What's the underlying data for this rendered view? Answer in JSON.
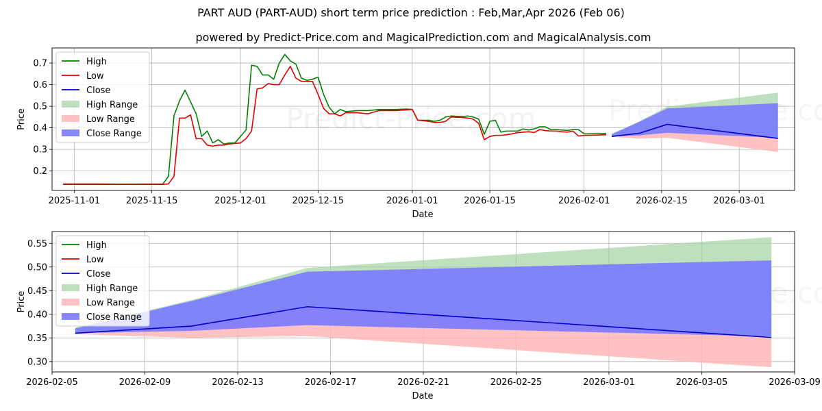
{
  "title": "PART AUD (PART-AUD) short term price prediction : Feb,Mar,Apr 2026 (Feb 06)",
  "subtitle": "powered by Predict-Price.com and MagicalPrediction.com and MagicalAnalysis.com",
  "watermark": "Predict-Price.com",
  "colors": {
    "high": "#008000",
    "low": "#e00000",
    "close": "#0000cc",
    "high_range": "#a3d3a3",
    "low_range": "#ffb3b3",
    "close_range": "#7a7aff"
  },
  "chart_data": [
    {
      "type": "line",
      "xlabel": "Date",
      "ylabel": "Price",
      "x_range": [
        "2025-10-28",
        "2026-03-11"
      ],
      "ylim": [
        0.11,
        0.77
      ],
      "yticks": [
        0.2,
        0.3,
        0.4,
        0.5,
        0.6,
        0.7
      ],
      "ytick_labels": [
        "0.2",
        "0.3",
        "0.4",
        "0.5",
        "0.6",
        "0.7"
      ],
      "xticks": [
        "2025-11-01",
        "2025-11-15",
        "2025-12-01",
        "2025-12-15",
        "2026-01-01",
        "2026-01-15",
        "2026-02-01",
        "2026-02-15",
        "2026-03-01"
      ],
      "xtick_labels": [
        "2025-11-01",
        "2025-11-15",
        "2025-12-01",
        "2025-12-15",
        "2026-01-01",
        "2026-01-15",
        "2026-02-01",
        "2026-02-15",
        "2026-03-01"
      ],
      "grid": true,
      "legend_position": "top-left",
      "legend": [
        "High",
        "Low",
        "Close",
        "High Range",
        "Low Range",
        "Close Range"
      ],
      "series": [
        {
          "name": "High",
          "points": [
            [
              "2025-10-30",
              0.14
            ],
            [
              "2025-11-05",
              0.14
            ],
            [
              "2025-11-10",
              0.139
            ],
            [
              "2025-11-17",
              0.14
            ],
            [
              "2025-11-18",
              0.175
            ],
            [
              "2025-11-19",
              0.455
            ],
            [
              "2025-11-20",
              0.525
            ],
            [
              "2025-11-21",
              0.575
            ],
            [
              "2025-11-22",
              0.52
            ],
            [
              "2025-11-23",
              0.465
            ],
            [
              "2025-11-24",
              0.36
            ],
            [
              "2025-11-25",
              0.385
            ],
            [
              "2025-11-26",
              0.33
            ],
            [
              "2025-11-27",
              0.345
            ],
            [
              "2025-11-28",
              0.325
            ],
            [
              "2025-11-29",
              0.33
            ],
            [
              "2025-11-30",
              0.33
            ],
            [
              "2025-12-01",
              0.36
            ],
            [
              "2025-12-02",
              0.39
            ],
            [
              "2025-12-03",
              0.69
            ],
            [
              "2025-12-04",
              0.685
            ],
            [
              "2025-12-05",
              0.645
            ],
            [
              "2025-12-06",
              0.645
            ],
            [
              "2025-12-07",
              0.625
            ],
            [
              "2025-12-08",
              0.7
            ],
            [
              "2025-12-09",
              0.74
            ],
            [
              "2025-12-10",
              0.71
            ],
            [
              "2025-12-11",
              0.695
            ],
            [
              "2025-12-12",
              0.63
            ],
            [
              "2025-12-13",
              0.62
            ],
            [
              "2025-12-14",
              0.625
            ],
            [
              "2025-12-15",
              0.635
            ],
            [
              "2025-12-16",
              0.555
            ],
            [
              "2025-12-17",
              0.495
            ],
            [
              "2025-12-18",
              0.465
            ],
            [
              "2025-12-19",
              0.485
            ],
            [
              "2025-12-20",
              0.475
            ],
            [
              "2025-12-22",
              0.48
            ],
            [
              "2025-12-24",
              0.48
            ],
            [
              "2025-12-26",
              0.485
            ],
            [
              "2025-12-29",
              0.485
            ],
            [
              "2025-12-31",
              0.487
            ],
            [
              "2026-01-01",
              0.485
            ],
            [
              "2026-01-02",
              0.435
            ],
            [
              "2026-01-03",
              0.435
            ],
            [
              "2026-01-04",
              0.435
            ],
            [
              "2026-01-05",
              0.43
            ],
            [
              "2026-01-06",
              0.435
            ],
            [
              "2026-01-07",
              0.45
            ],
            [
              "2026-01-08",
              0.455
            ],
            [
              "2026-01-10",
              0.452
            ],
            [
              "2026-01-11",
              0.455
            ],
            [
              "2026-01-12",
              0.45
            ],
            [
              "2026-01-13",
              0.44
            ],
            [
              "2026-01-14",
              0.37
            ],
            [
              "2026-01-15",
              0.43
            ],
            [
              "2026-01-16",
              0.435
            ],
            [
              "2026-01-17",
              0.38
            ],
            [
              "2026-01-18",
              0.385
            ],
            [
              "2026-01-19",
              0.385
            ],
            [
              "2026-01-20",
              0.385
            ],
            [
              "2026-01-21",
              0.395
            ],
            [
              "2026-01-22",
              0.39
            ],
            [
              "2026-01-23",
              0.395
            ],
            [
              "2026-01-24",
              0.405
            ],
            [
              "2026-01-25",
              0.405
            ],
            [
              "2026-01-26",
              0.392
            ],
            [
              "2026-01-27",
              0.392
            ],
            [
              "2026-01-28",
              0.39
            ],
            [
              "2026-01-29",
              0.388
            ],
            [
              "2026-01-30",
              0.392
            ],
            [
              "2026-01-31",
              0.392
            ],
            [
              "2026-02-01",
              0.372
            ],
            [
              "2026-02-03",
              0.373
            ],
            [
              "2026-02-05",
              0.374
            ]
          ]
        },
        {
          "name": "Low",
          "points": [
            [
              "2025-10-30",
              0.138
            ],
            [
              "2025-11-05",
              0.138
            ],
            [
              "2025-11-10",
              0.138
            ],
            [
              "2025-11-17",
              0.138
            ],
            [
              "2025-11-18",
              0.14
            ],
            [
              "2025-11-19",
              0.175
            ],
            [
              "2025-11-20",
              0.445
            ],
            [
              "2025-11-21",
              0.445
            ],
            [
              "2025-11-22",
              0.46
            ],
            [
              "2025-11-23",
              0.35
            ],
            [
              "2025-11-24",
              0.35
            ],
            [
              "2025-11-25",
              0.32
            ],
            [
              "2025-11-26",
              0.315
            ],
            [
              "2025-11-27",
              0.32
            ],
            [
              "2025-11-28",
              0.32
            ],
            [
              "2025-11-29",
              0.325
            ],
            [
              "2025-11-30",
              0.328
            ],
            [
              "2025-12-01",
              0.33
            ],
            [
              "2025-12-02",
              0.35
            ],
            [
              "2025-12-03",
              0.385
            ],
            [
              "2025-12-04",
              0.58
            ],
            [
              "2025-12-05",
              0.585
            ],
            [
              "2025-12-06",
              0.605
            ],
            [
              "2025-12-07",
              0.6
            ],
            [
              "2025-12-08",
              0.6
            ],
            [
              "2025-12-09",
              0.645
            ],
            [
              "2025-12-10",
              0.685
            ],
            [
              "2025-12-11",
              0.63
            ],
            [
              "2025-12-12",
              0.615
            ],
            [
              "2025-12-13",
              0.615
            ],
            [
              "2025-12-14",
              0.615
            ],
            [
              "2025-12-15",
              0.555
            ],
            [
              "2025-12-16",
              0.49
            ],
            [
              "2025-12-17",
              0.465
            ],
            [
              "2025-12-18",
              0.465
            ],
            [
              "2025-12-19",
              0.455
            ],
            [
              "2025-12-20",
              0.47
            ],
            [
              "2025-12-22",
              0.47
            ],
            [
              "2025-12-24",
              0.465
            ],
            [
              "2025-12-26",
              0.48
            ],
            [
              "2025-12-29",
              0.48
            ],
            [
              "2025-12-31",
              0.483
            ],
            [
              "2026-01-01",
              0.485
            ],
            [
              "2026-01-02",
              0.435
            ],
            [
              "2026-01-03",
              0.433
            ],
            [
              "2026-01-04",
              0.43
            ],
            [
              "2026-01-05",
              0.425
            ],
            [
              "2026-01-06",
              0.425
            ],
            [
              "2026-01-07",
              0.43
            ],
            [
              "2026-01-08",
              0.45
            ],
            [
              "2026-01-10",
              0.448
            ],
            [
              "2026-01-11",
              0.445
            ],
            [
              "2026-01-12",
              0.44
            ],
            [
              "2026-01-13",
              0.42
            ],
            [
              "2026-01-14",
              0.345
            ],
            [
              "2026-01-15",
              0.36
            ],
            [
              "2026-01-16",
              0.365
            ],
            [
              "2026-01-17",
              0.365
            ],
            [
              "2026-01-18",
              0.368
            ],
            [
              "2026-01-19",
              0.372
            ],
            [
              "2026-01-20",
              0.378
            ],
            [
              "2026-01-21",
              0.38
            ],
            [
              "2026-01-22",
              0.382
            ],
            [
              "2026-01-23",
              0.378
            ],
            [
              "2026-01-24",
              0.392
            ],
            [
              "2026-01-25",
              0.387
            ],
            [
              "2026-01-26",
              0.385
            ],
            [
              "2026-01-27",
              0.385
            ],
            [
              "2026-01-28",
              0.382
            ],
            [
              "2026-01-29",
              0.38
            ],
            [
              "2026-01-30",
              0.385
            ],
            [
              "2026-01-31",
              0.362
            ],
            [
              "2026-02-01",
              0.365
            ],
            [
              "2026-02-03",
              0.366
            ],
            [
              "2026-02-05",
              0.368
            ]
          ]
        },
        {
          "name": "Close",
          "points": [
            [
              "2026-02-06",
              0.36
            ],
            [
              "2026-02-11",
              0.375
            ],
            [
              "2026-02-16",
              0.416
            ],
            [
              "2026-03-08",
              0.351
            ]
          ]
        }
      ],
      "ranges": [
        {
          "name": "High Range",
          "upper": [
            [
              "2026-02-06",
              0.372
            ],
            [
              "2026-02-11",
              0.43
            ],
            [
              "2026-02-16",
              0.498
            ],
            [
              "2026-03-08",
              0.563
            ]
          ],
          "lower": [
            [
              "2026-02-06",
              0.36
            ],
            [
              "2026-02-11",
              0.375
            ],
            [
              "2026-02-16",
              0.416
            ],
            [
              "2026-03-08",
              0.351
            ]
          ]
        },
        {
          "name": "Low Range",
          "upper": [
            [
              "2026-02-06",
              0.36
            ],
            [
              "2026-02-11",
              0.375
            ],
            [
              "2026-02-16",
              0.416
            ],
            [
              "2026-03-08",
              0.351
            ]
          ],
          "lower": [
            [
              "2026-02-06",
              0.358
            ],
            [
              "2026-02-11",
              0.35
            ],
            [
              "2026-02-16",
              0.354
            ],
            [
              "2026-03-08",
              0.288
            ]
          ]
        },
        {
          "name": "Close Range",
          "upper": [
            [
              "2026-02-06",
              0.37
            ],
            [
              "2026-02-11",
              0.428
            ],
            [
              "2026-02-16",
              0.49
            ],
            [
              "2026-03-08",
              0.514
            ]
          ],
          "lower": [
            [
              "2026-02-06",
              0.36
            ],
            [
              "2026-02-11",
              0.365
            ],
            [
              "2026-02-16",
              0.377
            ],
            [
              "2026-03-08",
              0.353
            ]
          ]
        }
      ]
    },
    {
      "type": "line",
      "xlabel": "Date",
      "ylabel": "Price",
      "x_range": [
        "2026-02-05",
        "2026-03-09"
      ],
      "ylim": [
        0.278,
        0.575
      ],
      "yticks": [
        0.3,
        0.35,
        0.4,
        0.45,
        0.5,
        0.55
      ],
      "ytick_labels": [
        "0.30",
        "0.35",
        "0.40",
        "0.45",
        "0.50",
        "0.55"
      ],
      "xticks": [
        "2026-02-05",
        "2026-02-09",
        "2026-02-13",
        "2026-02-17",
        "2026-02-21",
        "2026-02-25",
        "2026-03-01",
        "2026-03-05",
        "2026-03-09"
      ],
      "xtick_labels": [
        "2026-02-05",
        "2026-02-09",
        "2026-02-13",
        "2026-02-17",
        "2026-02-21",
        "2026-02-25",
        "2026-03-01",
        "2026-03-05",
        "2026-03-09"
      ],
      "grid": true,
      "legend_position": "top-left",
      "legend": [
        "High",
        "Low",
        "Close",
        "High Range",
        "Low Range",
        "Close Range"
      ],
      "series": [
        {
          "name": "Close",
          "points": [
            [
              "2026-02-06",
              0.36
            ],
            [
              "2026-02-11",
              0.375
            ],
            [
              "2026-02-16",
              0.416
            ],
            [
              "2026-03-08",
              0.351
            ]
          ]
        }
      ],
      "ranges": [
        {
          "name": "High Range",
          "upper": [
            [
              "2026-02-06",
              0.372
            ],
            [
              "2026-02-11",
              0.43
            ],
            [
              "2026-02-16",
              0.498
            ],
            [
              "2026-03-08",
              0.563
            ]
          ],
          "lower": [
            [
              "2026-02-06",
              0.36
            ],
            [
              "2026-02-11",
              0.375
            ],
            [
              "2026-02-16",
              0.416
            ],
            [
              "2026-03-08",
              0.351
            ]
          ]
        },
        {
          "name": "Low Range",
          "upper": [
            [
              "2026-02-06",
              0.36
            ],
            [
              "2026-02-11",
              0.375
            ],
            [
              "2026-02-16",
              0.416
            ],
            [
              "2026-03-08",
              0.351
            ]
          ],
          "lower": [
            [
              "2026-02-06",
              0.358
            ],
            [
              "2026-02-11",
              0.35
            ],
            [
              "2026-02-16",
              0.354
            ],
            [
              "2026-03-08",
              0.288
            ]
          ]
        },
        {
          "name": "Close Range",
          "upper": [
            [
              "2026-02-06",
              0.37
            ],
            [
              "2026-02-11",
              0.428
            ],
            [
              "2026-02-16",
              0.49
            ],
            [
              "2026-03-08",
              0.514
            ]
          ],
          "lower": [
            [
              "2026-02-06",
              0.36
            ],
            [
              "2026-02-11",
              0.365
            ],
            [
              "2026-02-16",
              0.377
            ],
            [
              "2026-03-08",
              0.353
            ]
          ]
        }
      ]
    }
  ]
}
